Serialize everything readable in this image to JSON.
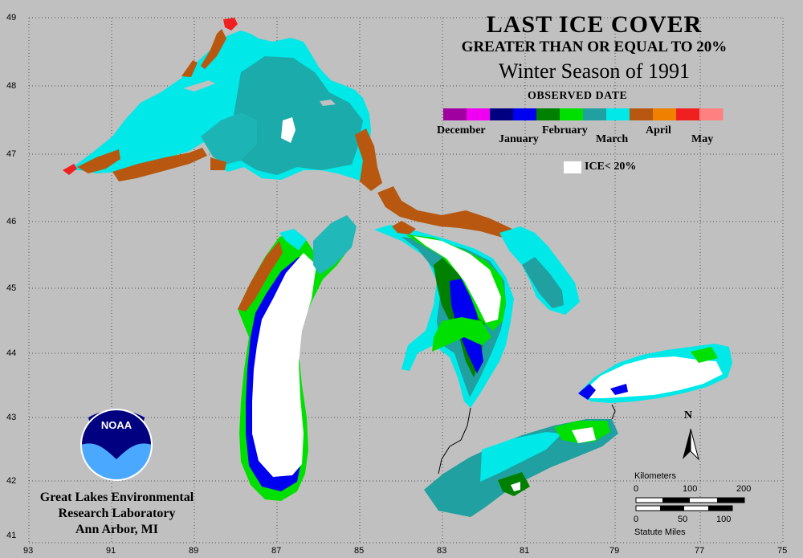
{
  "title": "LAST ICE COVER",
  "subtitle": "GREATER THAN OR EQUAL TO 20%",
  "season": "Winter Season of 1991",
  "legend": {
    "heading": "OBSERVED DATE",
    "months": [
      "December",
      "January",
      "February",
      "March",
      "April",
      "May"
    ],
    "colors": [
      "#a000a0",
      "#f000f0",
      "#000080",
      "#0000f0",
      "#008000",
      "#00e000",
      "#20a0a0",
      "#00e8e8",
      "#b85810",
      "#f08000",
      "#f02020",
      "#ff8080"
    ],
    "ice_label": "ICE< 20%"
  },
  "org": {
    "line1": "Great Lakes Environmental",
    "line2": "Research Laboratory",
    "line3": "Ann Arbor, MI"
  },
  "logo_text": "NOAA",
  "north_label": "N",
  "scale": {
    "km_label": "Kilometers",
    "km_ticks": [
      "0",
      "100",
      "200"
    ],
    "mi_ticks": [
      "0",
      "50",
      "100"
    ],
    "mi_label": "Statute Miles"
  },
  "lat_ticks": [
    "49",
    "48",
    "47",
    "46",
    "45",
    "44",
    "43",
    "42",
    "41"
  ],
  "lon_ticks": [
    "93",
    "91",
    "89",
    "87",
    "85",
    "83",
    "81",
    "79",
    "77",
    "75"
  ]
}
